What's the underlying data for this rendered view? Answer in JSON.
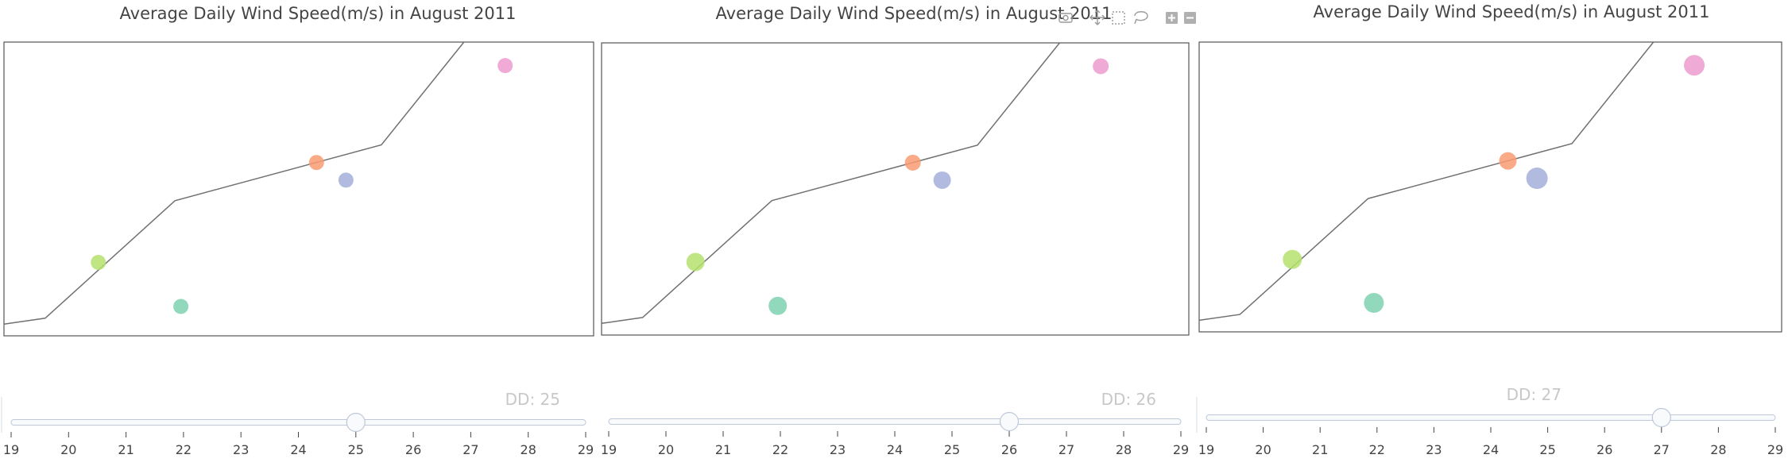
{
  "chart_data": [
    {
      "type": "scatter",
      "title": "Average Daily Wind Speed(m/s) in August 2011",
      "slider": {
        "label": "DD: 25",
        "value": 25,
        "ticks": [
          19,
          20,
          21,
          22,
          23,
          24,
          25,
          26,
          27,
          28,
          29
        ]
      },
      "line": [
        {
          "x": 0.0,
          "y": 0.04
        },
        {
          "x": 0.07,
          "y": 0.06
        },
        {
          "x": 0.29,
          "y": 0.46
        },
        {
          "x": 0.64,
          "y": 0.65
        },
        {
          "x": 0.78,
          "y": 1.0
        }
      ],
      "points": [
        {
          "x": 0.16,
          "y": 0.25,
          "size": 0.35,
          "color": "#b5e26f"
        },
        {
          "x": 0.3,
          "y": 0.1,
          "size": 0.35,
          "color": "#7fd1b0"
        },
        {
          "x": 0.53,
          "y": 0.59,
          "size": 0.35,
          "color": "#f99b72"
        },
        {
          "x": 0.58,
          "y": 0.53,
          "size": 0.35,
          "color": "#a3afdb"
        },
        {
          "x": 0.85,
          "y": 0.92,
          "size": 0.35,
          "color": "#ed9bcf"
        }
      ],
      "xlim": [
        0,
        1
      ],
      "ylim": [
        0,
        1
      ],
      "grid": false
    },
    {
      "type": "scatter",
      "title": "Average Daily Wind Speed(m/s) in August 2011",
      "slider": {
        "label": "DD: 26",
        "value": 26,
        "ticks": [
          19,
          20,
          21,
          22,
          23,
          24,
          25,
          26,
          27,
          28,
          29
        ]
      },
      "line": [
        {
          "x": 0.0,
          "y": 0.04
        },
        {
          "x": 0.07,
          "y": 0.06
        },
        {
          "x": 0.29,
          "y": 0.46
        },
        {
          "x": 0.64,
          "y": 0.65
        },
        {
          "x": 0.78,
          "y": 1.0
        }
      ],
      "points": [
        {
          "x": 0.16,
          "y": 0.25,
          "size": 0.55,
          "color": "#b5e26f"
        },
        {
          "x": 0.3,
          "y": 0.1,
          "size": 0.55,
          "color": "#7fd1b0"
        },
        {
          "x": 0.53,
          "y": 0.59,
          "size": 0.4,
          "color": "#f99b72"
        },
        {
          "x": 0.58,
          "y": 0.53,
          "size": 0.5,
          "color": "#a3afdb"
        },
        {
          "x": 0.85,
          "y": 0.92,
          "size": 0.4,
          "color": "#ed9bcf"
        }
      ],
      "xlim": [
        0,
        1
      ],
      "ylim": [
        0,
        1
      ],
      "grid": false
    },
    {
      "type": "scatter",
      "title": "Average Daily Wind Speed(m/s) in August 2011",
      "slider": {
        "label": "DD: 27",
        "value": 27,
        "ticks": [
          19,
          20,
          21,
          22,
          23,
          24,
          25,
          26,
          27,
          28,
          29
        ]
      },
      "line": [
        {
          "x": 0.0,
          "y": 0.04
        },
        {
          "x": 0.07,
          "y": 0.06
        },
        {
          "x": 0.29,
          "y": 0.46
        },
        {
          "x": 0.64,
          "y": 0.65
        },
        {
          "x": 0.78,
          "y": 1.0
        }
      ],
      "points": [
        {
          "x": 0.16,
          "y": 0.25,
          "size": 0.6,
          "color": "#b5e26f"
        },
        {
          "x": 0.3,
          "y": 0.1,
          "size": 0.65,
          "color": "#7fd1b0"
        },
        {
          "x": 0.53,
          "y": 0.59,
          "size": 0.5,
          "color": "#f99b72"
        },
        {
          "x": 0.58,
          "y": 0.53,
          "size": 0.75,
          "color": "#a3afdb"
        },
        {
          "x": 0.85,
          "y": 0.92,
          "size": 0.7,
          "color": "#ed9bcf"
        }
      ],
      "xlim": [
        0,
        1
      ],
      "ylim": [
        0,
        1
      ],
      "grid": false
    }
  ],
  "modebar": {
    "icons": [
      "camera-icon",
      "pan-icon",
      "box-select-icon",
      "lasso-icon",
      "zoom-in-icon",
      "zoom-out-icon"
    ]
  }
}
